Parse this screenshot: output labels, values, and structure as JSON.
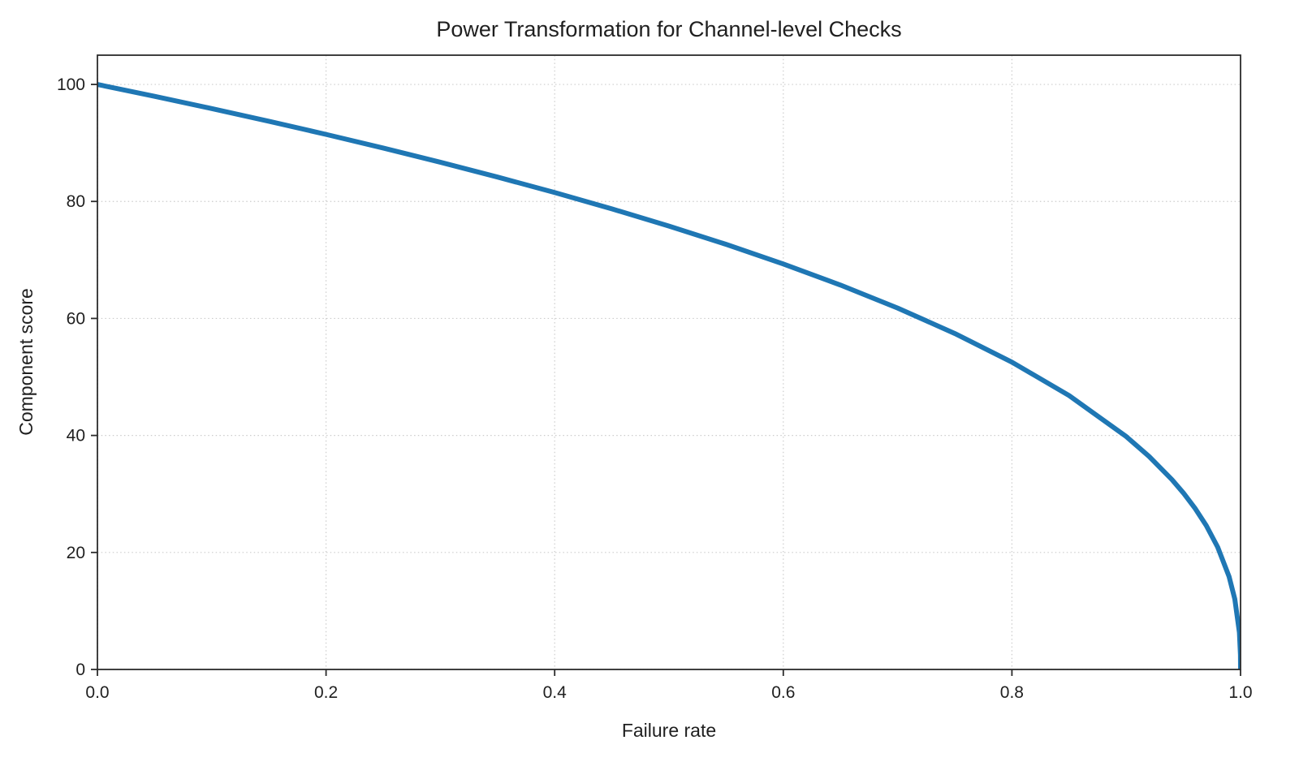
{
  "page": {
    "background": "#ffffff"
  },
  "chart_data": {
    "type": "line",
    "title": "Power Transformation for Channel-level Checks",
    "xlabel": "Failure rate",
    "ylabel": "Component score",
    "xlim": [
      0,
      1
    ],
    "ylim": [
      0,
      105
    ],
    "xticks": [
      0.0,
      0.2,
      0.4,
      0.6,
      0.8,
      1.0
    ],
    "xtick_labels": [
      "0.0",
      "0.2",
      "0.4",
      "0.6",
      "0.8",
      "1.0"
    ],
    "yticks": [
      0,
      20,
      40,
      60,
      80,
      100
    ],
    "ytick_labels": [
      "0",
      "20",
      "40",
      "60",
      "80",
      "100"
    ],
    "grid": true,
    "grid_style": "dotted",
    "grid_color": "#cccccc",
    "line_color": "#1f77b4",
    "line_width": 6,
    "spine_color": "#2b2b2b",
    "legend": "none",
    "x": [
      0,
      0.05,
      0.1,
      0.15,
      0.2,
      0.25,
      0.3,
      0.35,
      0.4,
      0.45,
      0.5,
      0.55,
      0.6,
      0.65,
      0.7,
      0.75,
      0.8,
      0.85,
      0.9,
      0.92,
      0.94,
      0.95,
      0.96,
      0.97,
      0.98,
      0.99,
      0.995,
      0.999,
      0.9999,
      1.0
    ],
    "y": [
      100,
      97.97,
      95.87,
      93.71,
      91.46,
      89.13,
      86.7,
      84.17,
      81.52,
      78.73,
      75.79,
      72.66,
      69.31,
      65.71,
      61.78,
      57.43,
      52.53,
      46.82,
      39.81,
      36.41,
      32.45,
      30.17,
      27.6,
      24.6,
      20.91,
      15.85,
      12.01,
      6.31,
      2.51,
      0
    ]
  }
}
